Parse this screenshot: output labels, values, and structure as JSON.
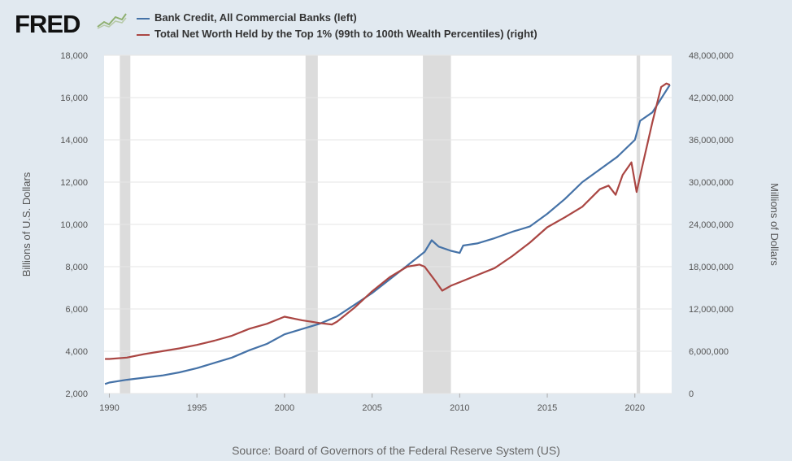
{
  "brand": {
    "logo_text": "FRED"
  },
  "chart_data": {
    "type": "line",
    "x_ticks": [
      1990,
      1995,
      2000,
      2005,
      2010,
      2015,
      2020
    ],
    "xlim": [
      1989.7,
      2022.1
    ],
    "left_axis": {
      "label": "Billions of U.S. Dollars",
      "lim": [
        2000,
        18000
      ],
      "ticks": [
        2000,
        4000,
        6000,
        8000,
        10000,
        12000,
        14000,
        16000,
        18000
      ],
      "tick_labels": [
        "2,000",
        "4,000",
        "6,000",
        "8,000",
        "10,000",
        "12,000",
        "14,000",
        "16,000",
        "18,000"
      ]
    },
    "right_axis": {
      "label": "Millions of Dollars",
      "lim": [
        0,
        48000000
      ],
      "ticks": [
        0,
        6000000,
        12000000,
        18000000,
        24000000,
        30000000,
        36000000,
        42000000,
        48000000
      ],
      "tick_labels": [
        "0",
        "6,000,000",
        "12,000,000",
        "18,000,000",
        "24,000,000",
        "30,000,000",
        "36,000,000",
        "42,000,000",
        "48,000,000"
      ]
    },
    "recessions": [
      [
        1990.6,
        1991.2
      ],
      [
        2001.2,
        2001.9
      ],
      [
        2007.9,
        2009.5
      ],
      [
        2020.1,
        2020.3
      ]
    ],
    "grid": true,
    "legend_placement": "top-left",
    "series": [
      {
        "name": "Bank Credit, All Commercial Banks (left)",
        "axis": "left",
        "color": "#4572a7",
        "points": [
          [
            1989.75,
            2450
          ],
          [
            1990,
            2520
          ],
          [
            1991,
            2650
          ],
          [
            1992,
            2750
          ],
          [
            1993,
            2850
          ],
          [
            1994,
            3000
          ],
          [
            1995,
            3200
          ],
          [
            1996,
            3450
          ],
          [
            1997,
            3700
          ],
          [
            1998,
            4050
          ],
          [
            1999,
            4350
          ],
          [
            2000,
            4800
          ],
          [
            2001,
            5050
          ],
          [
            2002,
            5300
          ],
          [
            2003,
            5650
          ],
          [
            2004,
            6200
          ],
          [
            2005,
            6750
          ],
          [
            2006,
            7400
          ],
          [
            2007,
            8050
          ],
          [
            2008,
            8700
          ],
          [
            2008.4,
            9250
          ],
          [
            2008.8,
            8950
          ],
          [
            2009.5,
            8750
          ],
          [
            2010,
            8650
          ],
          [
            2010.2,
            9000
          ],
          [
            2011,
            9100
          ],
          [
            2012,
            9350
          ],
          [
            2013,
            9650
          ],
          [
            2014,
            9900
          ],
          [
            2015,
            10500
          ],
          [
            2016,
            11200
          ],
          [
            2017,
            12000
          ],
          [
            2018,
            12600
          ],
          [
            2019,
            13200
          ],
          [
            2020,
            14000
          ],
          [
            2020.3,
            14900
          ],
          [
            2021,
            15300
          ],
          [
            2022,
            16600
          ]
        ]
      },
      {
        "name": "Total Net Worth Held by the Top 1% (99th to 100th Wealth Percentiles) (right)",
        "axis": "right",
        "color": "#aa4643",
        "points": [
          [
            1989.75,
            4900000
          ],
          [
            1990,
            4900000
          ],
          [
            1991,
            5100000
          ],
          [
            1992,
            5600000
          ],
          [
            1993,
            6000000
          ],
          [
            1994,
            6400000
          ],
          [
            1995,
            6900000
          ],
          [
            1996,
            7500000
          ],
          [
            1997,
            8200000
          ],
          [
            1998,
            9200000
          ],
          [
            1999,
            9900000
          ],
          [
            2000,
            10900000
          ],
          [
            2001,
            10400000
          ],
          [
            2002,
            10000000
          ],
          [
            2002.7,
            9800000
          ],
          [
            2003,
            10200000
          ],
          [
            2004,
            12200000
          ],
          [
            2005,
            14500000
          ],
          [
            2006,
            16500000
          ],
          [
            2007,
            18000000
          ],
          [
            2007.7,
            18300000
          ],
          [
            2008,
            18000000
          ],
          [
            2008.6,
            16000000
          ],
          [
            2009,
            14600000
          ],
          [
            2009.5,
            15300000
          ],
          [
            2010,
            15800000
          ],
          [
            2011,
            16800000
          ],
          [
            2012,
            17800000
          ],
          [
            2013,
            19500000
          ],
          [
            2014,
            21400000
          ],
          [
            2015,
            23600000
          ],
          [
            2016,
            25000000
          ],
          [
            2017,
            26500000
          ],
          [
            2018,
            29000000
          ],
          [
            2018.5,
            29500000
          ],
          [
            2018.9,
            28200000
          ],
          [
            2019.3,
            31000000
          ],
          [
            2019.8,
            32800000
          ],
          [
            2020.1,
            28600000
          ],
          [
            2020.4,
            32000000
          ],
          [
            2021,
            38500000
          ],
          [
            2021.5,
            43500000
          ],
          [
            2021.8,
            44000000
          ],
          [
            2022,
            43800000
          ]
        ]
      }
    ],
    "source": "Source: Board of Governors of the Federal Reserve System (US)"
  }
}
